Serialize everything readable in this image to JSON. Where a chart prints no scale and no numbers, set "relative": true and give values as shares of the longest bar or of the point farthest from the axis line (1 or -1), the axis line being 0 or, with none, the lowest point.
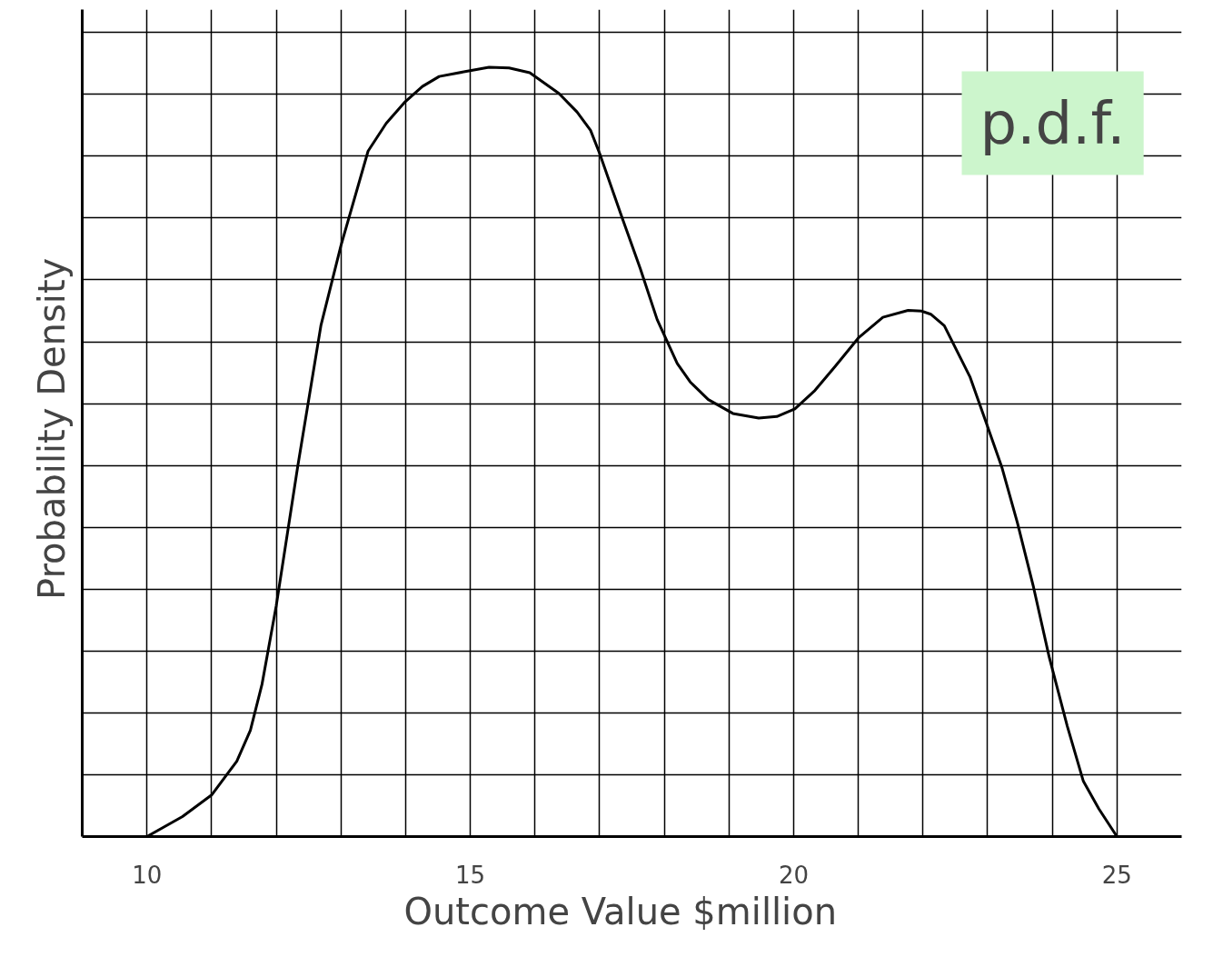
{
  "chart_data": {
    "type": "line",
    "relative": true,
    "xlabel": "Outcome  Value  $million",
    "ylabel": "Probability  Density",
    "annotations": [
      "p.d.f."
    ],
    "xlim": [
      9,
      26
    ],
    "xticks": [
      10,
      {
        "value": 11,
        "label": null
      },
      {
        "value": 12,
        "label": null
      },
      {
        "value": 13,
        "label": null
      },
      {
        "value": 14,
        "label": null
      },
      15,
      {
        "value": 16,
        "label": null
      },
      {
        "value": 17,
        "label": null
      },
      {
        "value": 18,
        "label": null
      },
      {
        "value": 19,
        "label": null
      },
      20,
      {
        "value": 21,
        "label": null
      },
      {
        "value": 22,
        "label": null
      },
      {
        "value": 23,
        "label": null
      },
      {
        "value": 24,
        "label": null
      },
      25
    ],
    "grid": true,
    "marker": "none",
    "line_style": "solid",
    "series": [
      {
        "color": "#000000",
        "x": [
          10,
          10.55,
          11.0,
          11.39,
          11.6,
          11.78,
          12.0,
          12.33,
          12.69,
          13.0,
          13.42,
          13.7,
          13.98,
          14.26,
          14.52,
          14.9,
          15.29,
          15.6,
          15.92,
          16.37,
          16.65,
          16.86,
          17.0,
          17.35,
          17.63,
          17.89,
          18.2,
          18.4,
          18.68,
          19.06,
          19.46,
          19.74,
          20.02,
          20.33,
          20.65,
          21.0,
          21.38,
          21.77,
          21.98,
          22.12,
          22.33,
          22.73,
          22.97,
          23.22,
          23.46,
          23.71,
          23.95,
          24.23,
          24.48,
          24.72,
          25.0
        ],
        "values": [
          0,
          0.026,
          0.054,
          0.098,
          0.138,
          0.198,
          0.3,
          0.48,
          0.664,
          0.768,
          0.891,
          0.927,
          0.954,
          0.975,
          0.988,
          0.994,
          1.0,
          0.999,
          0.993,
          0.966,
          0.942,
          0.918,
          0.888,
          0.804,
          0.738,
          0.672,
          0.615,
          0.591,
          0.568,
          0.55,
          0.544,
          0.546,
          0.556,
          0.58,
          0.612,
          0.648,
          0.675,
          0.684,
          0.683,
          0.679,
          0.664,
          0.597,
          0.54,
          0.48,
          0.408,
          0.324,
          0.234,
          0.144,
          0.072,
          0.036,
          0
        ]
      }
    ]
  }
}
